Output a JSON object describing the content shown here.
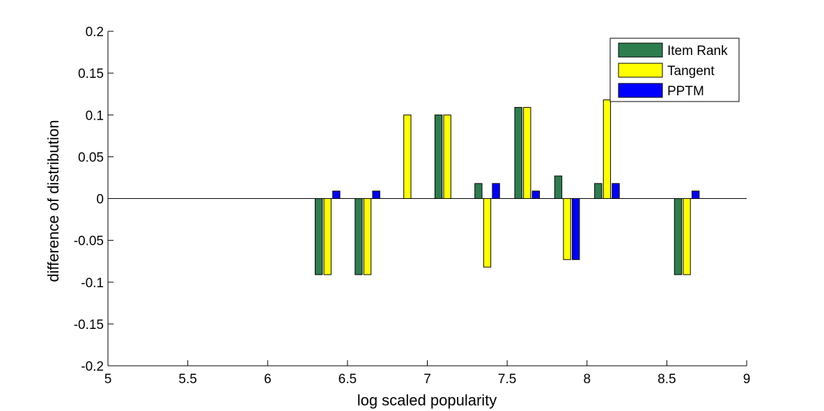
{
  "chart_data": {
    "type": "bar",
    "title": "",
    "xlabel": "log scaled popularity",
    "ylabel": "difference of distribution",
    "xlim": [
      5,
      9
    ],
    "ylim": [
      -0.2,
      0.2
    ],
    "xticks": [
      5,
      5.5,
      6,
      6.5,
      7,
      7.5,
      8,
      8.5,
      9
    ],
    "xtick_labels": [
      "5",
      "5.5",
      "6",
      "6.5",
      "7",
      "7.5",
      "8",
      "8.5",
      "9"
    ],
    "yticks": [
      0.2,
      0.15,
      0.1,
      0.05,
      0,
      -0.05,
      -0.1,
      -0.15,
      -0.2
    ],
    "ytick_labels": [
      "0.2",
      "0.15",
      "0.1",
      "0.05",
      "0",
      "-0.05",
      "-0.1",
      "-0.15",
      "-0.2"
    ],
    "grid": false,
    "legend_position": "top-right",
    "x": [
      6.375,
      6.625,
      6.875,
      7.125,
      7.375,
      7.625,
      7.875,
      8.125,
      8.625
    ],
    "series": [
      {
        "name": "Item Rank",
        "color": "#2e7d4f",
        "values": [
          -0.091,
          -0.091,
          0,
          0.1,
          0.018,
          0.109,
          0.027,
          0.018,
          -0.091
        ]
      },
      {
        "name": "Tangent",
        "color": "#ffff00",
        "values": [
          -0.091,
          -0.091,
          0.1,
          0.1,
          -0.082,
          0.109,
          -0.073,
          0.118,
          -0.091
        ]
      },
      {
        "name": "PPTM",
        "color": "#0000ff",
        "values": [
          0.009,
          0.009,
          0,
          0,
          0.018,
          0.009,
          -0.073,
          0.018,
          0.009
        ]
      }
    ]
  }
}
